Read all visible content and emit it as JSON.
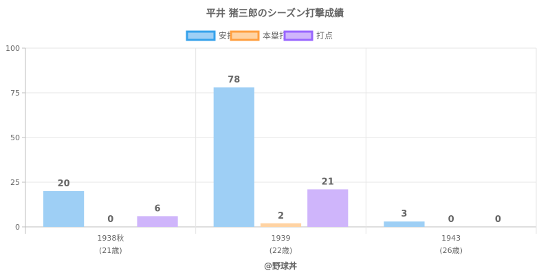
{
  "chart_data": {
    "type": "bar",
    "title": "平井 猪三郎のシーズン打撃成績",
    "categories": [
      {
        "line1": "1938秋",
        "line2": "(21歳)"
      },
      {
        "line1": "1939",
        "line2": "(22歳)"
      },
      {
        "line1": "1943",
        "line2": "(26歳)"
      }
    ],
    "series": [
      {
        "name": "安打",
        "values": [
          20,
          78,
          3
        ],
        "fill": "#9ecff5",
        "stroke": "#36a2eb"
      },
      {
        "name": "本塁打",
        "values": [
          0,
          2,
          0
        ],
        "fill": "#ffd3a3",
        "stroke": "#ff9f40"
      },
      {
        "name": "打点",
        "values": [
          6,
          21,
          0
        ],
        "fill": "#cfb5fb",
        "stroke": "#9966ff"
      }
    ],
    "ylim": [
      0,
      100
    ],
    "yticks": [
      "0",
      "25",
      "50",
      "75",
      "100"
    ],
    "grid": true,
    "legend_position": "top",
    "credit": "@野球丼"
  }
}
